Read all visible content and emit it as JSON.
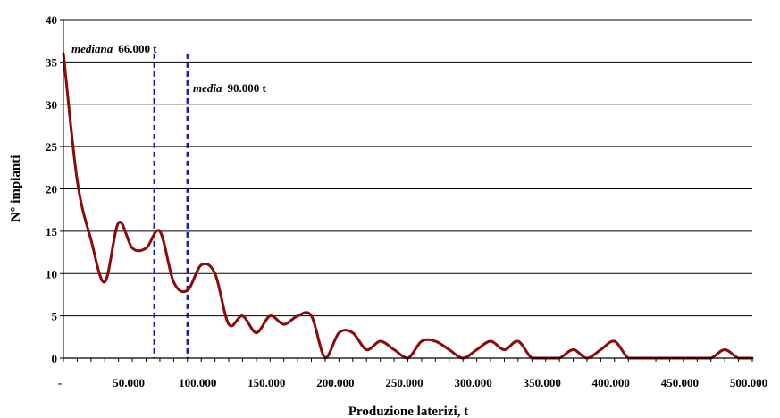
{
  "chart_data": {
    "type": "line",
    "title": "",
    "xlabel": "Produzione laterizi, t",
    "ylabel": "N° impianti",
    "xlim": [
      0,
      500000
    ],
    "ylim": [
      0,
      40
    ],
    "x_ticks": [
      0,
      50000,
      100000,
      150000,
      200000,
      250000,
      300000,
      350000,
      400000,
      450000,
      500000
    ],
    "x_tick_labels": [
      "-",
      "50.000",
      "100.000",
      "150.000",
      "200.000",
      "250.000",
      "300.000",
      "350.000",
      "400.000",
      "450.000",
      "500.000"
    ],
    "y_ticks": [
      0,
      5,
      10,
      15,
      20,
      25,
      30,
      35,
      40
    ],
    "y_tick_labels": [
      "0",
      "5",
      "10",
      "15",
      "20",
      "25",
      "30",
      "35",
      "40"
    ],
    "grid": "horizontal",
    "legend": "none",
    "series": [
      {
        "color": "#8b0a0a",
        "x": [
          0,
          10000,
          20000,
          30000,
          40000,
          50000,
          60000,
          70000,
          80000,
          90000,
          100000,
          110000,
          120000,
          130000,
          140000,
          150000,
          160000,
          170000,
          180000,
          190000,
          200000,
          210000,
          220000,
          230000,
          240000,
          250000,
          260000,
          270000,
          280000,
          290000,
          300000,
          310000,
          320000,
          330000,
          340000,
          350000,
          360000,
          370000,
          380000,
          390000,
          400000,
          410000,
          420000,
          430000,
          440000,
          450000,
          460000,
          470000,
          480000,
          490000,
          500000
        ],
        "y": [
          36,
          21,
          14,
          9,
          16,
          13,
          13,
          15,
          9,
          8,
          11,
          10,
          4,
          5,
          3,
          5,
          4,
          5,
          5,
          0,
          3,
          3,
          1,
          2,
          1,
          0,
          2,
          2,
          1,
          0,
          1,
          2,
          1,
          2,
          0,
          0,
          0,
          1,
          0,
          1,
          2,
          0,
          0,
          0,
          0,
          0,
          0,
          0,
          1,
          0,
          0
        ]
      }
    ],
    "reference_lines": [
      {
        "x": 66000,
        "color": "#1a1aa6",
        "label_italic": "mediana",
        "label_value": "66.000 t"
      },
      {
        "x": 90000,
        "color": "#1a1aa6",
        "label_italic": "media",
        "label_value": "90.000 t"
      }
    ]
  }
}
